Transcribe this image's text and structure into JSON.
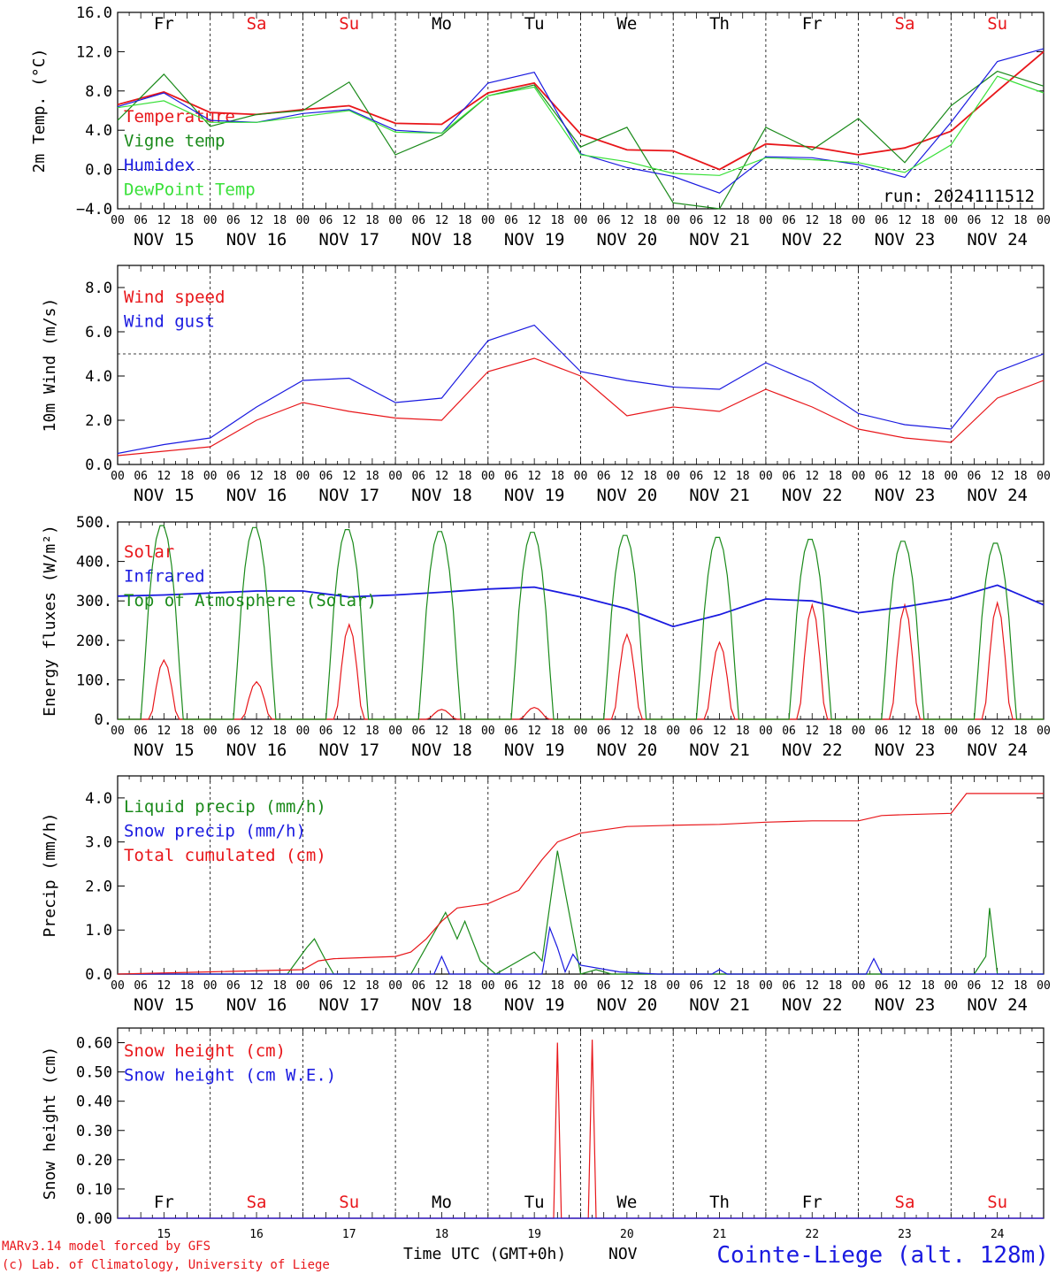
{
  "meteogram": {
    "run_label": "run: 2024111512",
    "station": "Cointe-Liege (alt. 128m)",
    "credit_line1": "MARv3.14 model forced by GFS",
    "credit_line2": "(c) Lab. of Climatology, University of Liege",
    "x_axis_title": "Time UTC (GMT+0h)",
    "x_month": "NOV",
    "hour_ticks": [
      "00",
      "06",
      "12",
      "18"
    ],
    "date_labels": [
      "NOV 15",
      "NOV 16",
      "NOV 17",
      "NOV 18",
      "NOV 19",
      "NOV 20",
      "NOV 21",
      "NOV 22",
      "NOV 23",
      "NOV 24"
    ],
    "day_numbers": [
      "15",
      "16",
      "17",
      "18",
      "19",
      "20",
      "21",
      "22",
      "23",
      "24"
    ],
    "weekdays": [
      {
        "label": "Fr",
        "color": "#000000"
      },
      {
        "label": "Sa",
        "color": "#e8161a"
      },
      {
        "label": "Su",
        "color": "#e8161a"
      },
      {
        "label": "Mo",
        "color": "#000000"
      },
      {
        "label": "Tu",
        "color": "#000000"
      },
      {
        "label": "We",
        "color": "#000000"
      },
      {
        "label": "Th",
        "color": "#000000"
      },
      {
        "label": "Fr",
        "color": "#000000"
      },
      {
        "label": "Sa",
        "color": "#e8161a"
      },
      {
        "label": "Su",
        "color": "#e8161a"
      }
    ],
    "colors": {
      "red": "#e8161a",
      "green": "#1a8a1a",
      "blue": "#1a1ae0",
      "lightgreen": "#39e039",
      "dark": "#000000"
    }
  },
  "chart_data": [
    {
      "type": "line",
      "ylabel": "2m Temp. (°C)",
      "ylim": [
        -4,
        16
      ],
      "yticks": [
        "−4.0",
        "0.0",
        "4.0",
        "8.0",
        "12.0",
        "16.0"
      ],
      "ref_line": 0,
      "x_hours": [
        0,
        12,
        24,
        36,
        48,
        60,
        72,
        84,
        96,
        108,
        120,
        132,
        144,
        156,
        168,
        180,
        192,
        204,
        216,
        228,
        240
      ],
      "series": [
        {
          "name": "Temperature",
          "color": "#e8161a",
          "values": [
            6.6,
            7.9,
            5.8,
            5.6,
            6.1,
            6.5,
            4.7,
            4.6,
            7.8,
            8.8,
            3.6,
            2.0,
            1.9,
            0.0,
            2.6,
            2.3,
            1.5,
            2.2,
            3.9,
            8.0,
            12.0
          ]
        },
        {
          "name": "Vigne temp",
          "color": "#1a8a1a",
          "values": [
            5.0,
            9.7,
            4.4,
            5.6,
            6.0,
            8.9,
            1.5,
            3.5,
            7.5,
            8.6,
            2.3,
            4.3,
            -3.4,
            -4.0,
            4.3,
            2.0,
            5.2,
            0.7,
            6.5,
            10.0,
            8.5
          ]
        },
        {
          "name": "Humidex",
          "color": "#1a1ae0",
          "values": [
            6.4,
            7.8,
            5.0,
            4.8,
            5.7,
            6.1,
            4.0,
            3.7,
            8.8,
            9.9,
            1.6,
            0.2,
            -0.7,
            -2.4,
            1.3,
            1.2,
            0.5,
            -0.8,
            4.8,
            11.0,
            12.3
          ]
        },
        {
          "name": "DewPoint Temp",
          "color": "#39e039",
          "values": [
            6.3,
            7.0,
            4.8,
            4.8,
            5.4,
            6.0,
            3.8,
            3.7,
            7.5,
            8.4,
            1.5,
            0.8,
            -0.4,
            -0.6,
            1.2,
            1.0,
            0.7,
            -0.3,
            2.5,
            9.5,
            7.8
          ]
        }
      ]
    },
    {
      "type": "line",
      "ylabel": "10m Wind (m/s)",
      "ylim": [
        0,
        9
      ],
      "yticks": [
        "0.0",
        "2.0",
        "4.0",
        "6.0",
        "8.0"
      ],
      "ref_line": 5,
      "x_hours": [
        0,
        12,
        24,
        36,
        48,
        60,
        72,
        84,
        96,
        108,
        120,
        132,
        144,
        156,
        168,
        180,
        192,
        204,
        216,
        228,
        240
      ],
      "series": [
        {
          "name": "Wind speed",
          "color": "#e8161a",
          "values": [
            0.4,
            0.6,
            0.8,
            2.0,
            2.8,
            2.4,
            2.1,
            2.0,
            4.2,
            4.8,
            4.0,
            2.2,
            2.6,
            2.4,
            3.4,
            2.6,
            1.6,
            1.2,
            1.0,
            3.0,
            3.8
          ]
        },
        {
          "name": "Wind gust",
          "color": "#1a1ae0",
          "values": [
            0.5,
            0.9,
            1.2,
            2.6,
            3.8,
            3.9,
            2.8,
            3.0,
            5.6,
            6.3,
            4.2,
            3.8,
            3.5,
            3.4,
            4.6,
            3.7,
            2.3,
            1.8,
            1.6,
            4.2,
            5.0
          ]
        }
      ]
    },
    {
      "type": "line",
      "ylabel": "Energy fluxes (W/m²)",
      "ylim": [
        0,
        500
      ],
      "yticks": [
        "0.",
        "100.",
        "200.",
        "300.",
        "400.",
        "500."
      ],
      "days": 10,
      "series": [
        {
          "name": "Solar",
          "color": "#e8161a",
          "peaks": [
            150,
            95,
            240,
            25,
            30,
            215,
            195,
            290,
            290,
            295
          ]
        },
        {
          "name": "Infrared",
          "color": "#1a1ae0",
          "x_hours": [
            0,
            12,
            24,
            36,
            48,
            60,
            72,
            84,
            96,
            108,
            120,
            132,
            144,
            156,
            168,
            180,
            192,
            204,
            216,
            228,
            240
          ],
          "values": [
            312,
            315,
            320,
            325,
            325,
            310,
            315,
            322,
            330,
            335,
            310,
            280,
            235,
            265,
            305,
            300,
            270,
            285,
            305,
            340,
            290
          ]
        },
        {
          "name": "Top of Atmosphere (Solar)",
          "color": "#1a8a1a",
          "peaks": [
            495,
            490,
            485,
            480,
            478,
            470,
            465,
            460,
            455,
            450
          ]
        }
      ]
    },
    {
      "type": "line",
      "ylabel": "Precip (mm/h)",
      "ylim": [
        0,
        4.5
      ],
      "yticks": [
        "0.0",
        "1.0",
        "2.0",
        "3.0",
        "4.0"
      ],
      "series": [
        {
          "name": "Liquid precip (mm/h)",
          "color": "#1a8a1a",
          "x_hours": [
            0,
            44,
            49,
            51,
            54,
            56,
            60,
            76,
            85,
            88,
            90,
            94,
            98,
            108,
            110,
            114,
            120,
            124,
            128,
            132,
            216,
            222,
            225,
            226,
            228,
            240
          ],
          "values": [
            0,
            0,
            0.6,
            0.8,
            0.3,
            0,
            0,
            0,
            1.4,
            0.8,
            1.2,
            0.3,
            0,
            0.5,
            0.3,
            2.8,
            0,
            0.1,
            0,
            0,
            0,
            0,
            0.4,
            1.5,
            0,
            0
          ]
        },
        {
          "name": "Snow precip (mm/h)",
          "color": "#1a1ae0",
          "x_hours": [
            0,
            82,
            84,
            86,
            110,
            112,
            114,
            116,
            118,
            120,
            130,
            140,
            154,
            156,
            158,
            194,
            196,
            198,
            200,
            240
          ],
          "values": [
            0,
            0,
            0.4,
            0,
            0,
            1.05,
            0.6,
            0.05,
            0.45,
            0.2,
            0.05,
            0,
            0,
            0.1,
            0,
            0,
            0.35,
            0,
            0,
            0
          ]
        },
        {
          "name": "Total cumulated (cm)",
          "color": "#e8161a",
          "x_hours": [
            0,
            24,
            48,
            52,
            56,
            72,
            76,
            80,
            84,
            88,
            92,
            96,
            104,
            110,
            114,
            120,
            132,
            144,
            156,
            168,
            180,
            192,
            198,
            204,
            216,
            220,
            240
          ],
          "values": [
            0,
            0.05,
            0.1,
            0.3,
            0.35,
            0.4,
            0.5,
            0.8,
            1.2,
            1.5,
            1.55,
            1.6,
            1.9,
            2.6,
            3.0,
            3.2,
            3.35,
            3.38,
            3.4,
            3.45,
            3.48,
            3.48,
            3.6,
            3.62,
            3.65,
            4.1,
            4.1
          ]
        }
      ]
    },
    {
      "type": "line",
      "ylabel": "Snow height (cm)",
      "ylim": [
        0,
        0.65
      ],
      "yticks": [
        "0.00",
        "0.10",
        "0.20",
        "0.30",
        "0.40",
        "0.50",
        "0.60"
      ],
      "series": [
        {
          "name": "Snow height (cm)",
          "color": "#e8161a",
          "x_hours": [
            0,
            113,
            114,
            115,
            116,
            122,
            123,
            124,
            125,
            240
          ],
          "values": [
            0,
            0,
            0.6,
            0,
            0,
            0,
            0.61,
            0,
            0,
            0
          ]
        },
        {
          "name": "Snow height (cm W.E.)",
          "color": "#1a1ae0",
          "x_hours": [
            0,
            240
          ],
          "values": [
            0,
            0
          ]
        }
      ]
    }
  ]
}
